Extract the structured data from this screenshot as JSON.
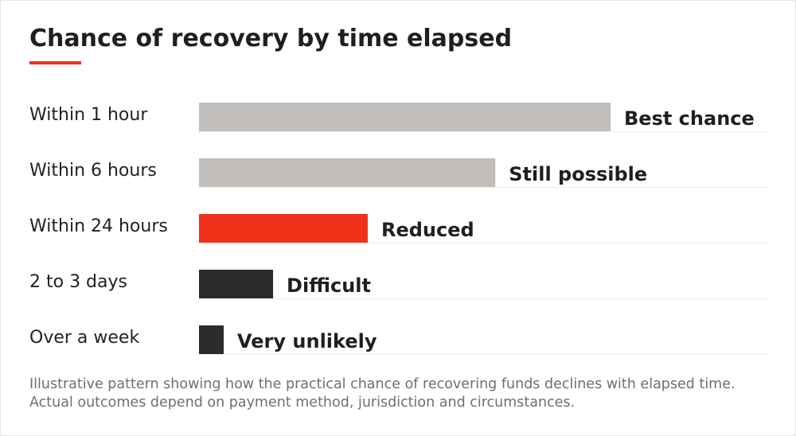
{
  "colors": {
    "accent": "#f0321a",
    "gray": "#c2bebb",
    "red": "#f0321a",
    "dark": "#2b2b2b",
    "gridline": "#ededed",
    "category_text": "#222222",
    "value_label_text": "#1f1f1f"
  },
  "chart_data": {
    "type": "bar",
    "orientation": "horizontal",
    "title": "Chance of recovery by time elapsed",
    "categories": [
      "Within 1 hour",
      "Within 6 hours",
      "Within 24 hours",
      "2 to 3 days",
      "Over a week"
    ],
    "values": [
      100,
      72,
      41,
      18,
      6
    ],
    "value_labels": [
      "Best chance",
      "Still possible",
      "Reduced",
      "Difficult",
      "Very unlikely"
    ],
    "bar_colors": [
      "gray",
      "gray",
      "red",
      "dark",
      "dark"
    ],
    "xlim": [
      0,
      100
    ],
    "grid": false,
    "legend": "none"
  },
  "footnote": {
    "line1": "Illustrative pattern showing how the practical chance of recovering funds declines with elapsed time.",
    "line2": "Actual outcomes depend on payment method, jurisdiction and circumstances."
  }
}
